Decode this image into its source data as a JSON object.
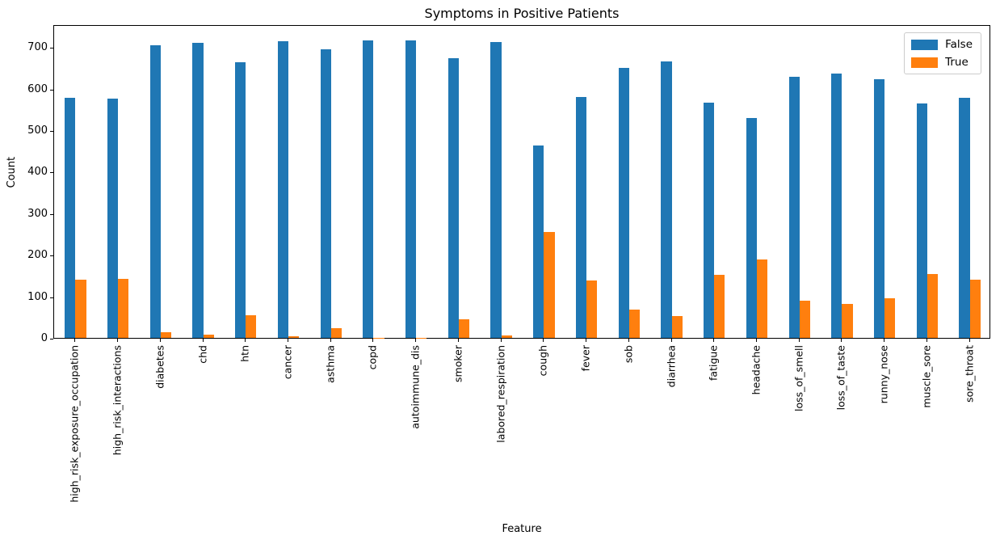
{
  "chart_data": {
    "type": "bar",
    "title": "Symptoms in Positive Patients",
    "xlabel": "Feature",
    "ylabel": "Count",
    "ylim": [
      0,
      755
    ],
    "yticks": [
      0,
      100,
      200,
      300,
      400,
      500,
      600,
      700
    ],
    "grid": false,
    "legend_position": "upper right",
    "categories": [
      "high_risk_exposure_occupation",
      "high_risk_interactions",
      "diabetes",
      "chd",
      "htn",
      "cancer",
      "asthma",
      "copd",
      "autoimmune_dis",
      "smoker",
      "labored_respiration",
      "cough",
      "fever",
      "sob",
      "diarrhea",
      "fatigue",
      "headache",
      "loss_of_smell",
      "loss_of_taste",
      "runny_nose",
      "muscle_sore",
      "sore_throat"
    ],
    "series": [
      {
        "name": "False",
        "color": "#1f77b4",
        "values": [
          578,
          576,
          704,
          711,
          664,
          715,
          695,
          717,
          717,
          674,
          713,
          464,
          580,
          650,
          666,
          566,
          529,
          629,
          637,
          623,
          564,
          578
        ]
      },
      {
        "name": "True",
        "color": "#ff7f0e",
        "values": [
          140,
          142,
          14,
          7,
          54,
          3,
          23,
          1,
          1,
          44,
          5,
          254,
          138,
          68,
          52,
          152,
          189,
          89,
          81,
          95,
          154,
          140
        ]
      }
    ]
  }
}
